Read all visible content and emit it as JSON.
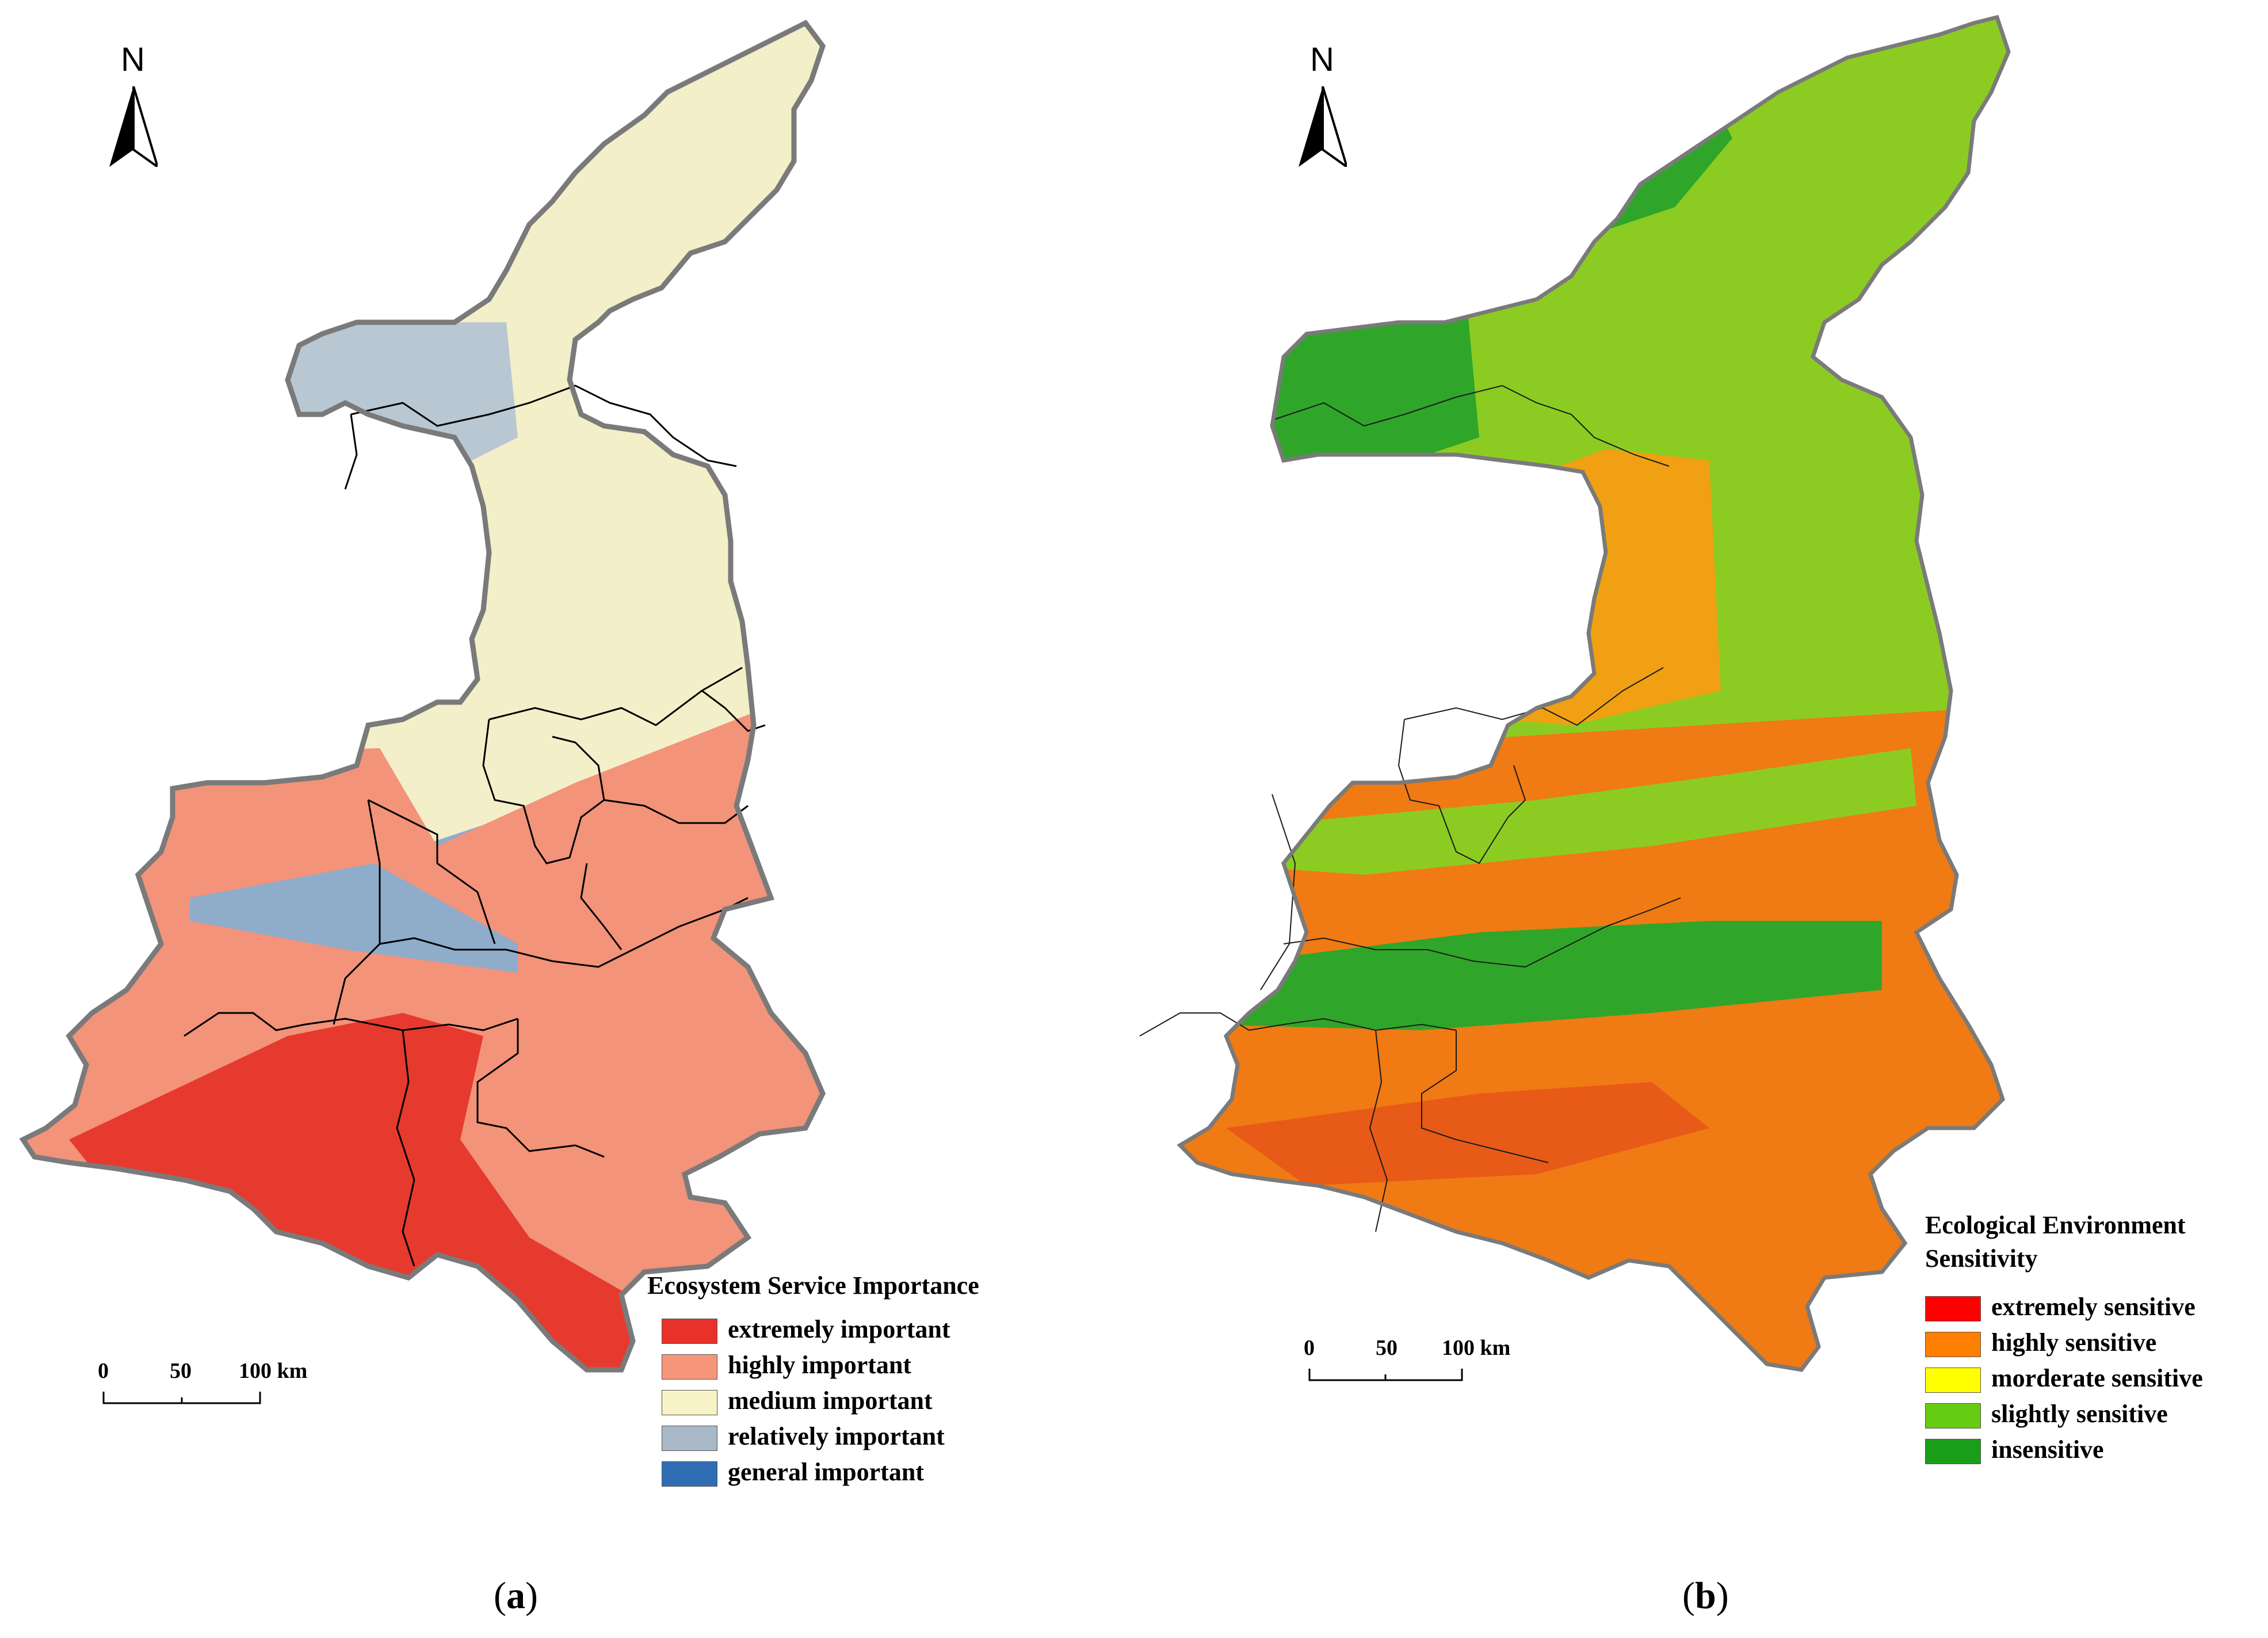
{
  "panels": [
    {
      "id": "a",
      "caption_open": "(",
      "caption_letter": "a",
      "caption_close": ")",
      "north_label": "N",
      "scale_labels": [
        "0",
        "50",
        "100 km"
      ],
      "legend": {
        "title_lines": [
          "Ecosystem Service Importance"
        ],
        "items": [
          {
            "label": "extremely important",
            "color": "#e8312a"
          },
          {
            "label": "highly important",
            "color": "#f5967a"
          },
          {
            "label": "medium important",
            "color": "#f7f3c6"
          },
          {
            "label": "relatively important",
            "color": "#a9b8c6"
          },
          {
            "label": "general important",
            "color": "#2f6db5"
          }
        ]
      },
      "zones": {
        "north": "#f3efc9",
        "west_upland": "#b9c7d3",
        "central_basin": "#8faccb",
        "south_slope": "#f2937a",
        "southern_core": "#e63a2f",
        "boundary": "#7a7a7a"
      }
    },
    {
      "id": "b",
      "caption_open": "(",
      "caption_letter": "b",
      "caption_close": ")",
      "north_label": "N",
      "scale_labels": [
        "0",
        "50",
        "100 km"
      ],
      "legend": {
        "title_lines": [
          "Ecological Environment",
          "Sensitivity"
        ],
        "items": [
          {
            "label": "extremely sensitive",
            "color": "#ff0000"
          },
          {
            "label": "highly sensitive",
            "color": "#ff8000"
          },
          {
            "label": "morderate sensitive",
            "color": "#ffff00"
          },
          {
            "label": "slightly sensitive",
            "color": "#66cc11"
          },
          {
            "label": "insensitive",
            "color": "#1a9e1a"
          }
        ]
      },
      "zones": {
        "north": "#8ccc22",
        "west_upland": "#2fa629",
        "central_basin": "#f0a012",
        "south_slope": "#f07a14",
        "southern_core": "#e85a18",
        "boundary": "#7a7a7a"
      }
    }
  ]
}
